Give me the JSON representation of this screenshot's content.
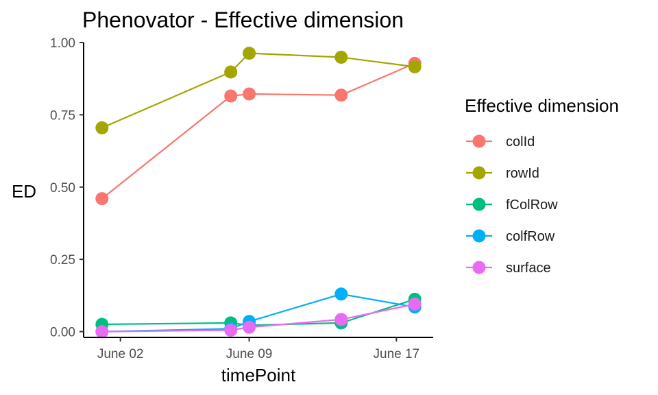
{
  "chart_data": {
    "type": "line",
    "title": "Phenovator - Effective dimension",
    "xlabel": "timePoint",
    "ylabel": "ED",
    "legend_title": "Effective dimension",
    "legend_position": "right",
    "grid": false,
    "x_type": "date",
    "xlim": [
      "2018-05-31",
      "2018-06-19"
    ],
    "ylim": [
      -0.02,
      1.0
    ],
    "x_ticks": [
      {
        "value": "2018-06-02",
        "label": "June 02"
      },
      {
        "value": "2018-06-09",
        "label": "June 09"
      },
      {
        "value": "2018-06-17",
        "label": "June 17"
      }
    ],
    "y_ticks": [
      {
        "value": 0.0,
        "label": "0.00"
      },
      {
        "value": 0.25,
        "label": "0.25"
      },
      {
        "value": 0.5,
        "label": "0.50"
      },
      {
        "value": 0.75,
        "label": "0.75"
      },
      {
        "value": 1.0,
        "label": "1.00"
      }
    ],
    "x": [
      "2018-06-01",
      "2018-06-08",
      "2018-06-09",
      "2018-06-14",
      "2018-06-18"
    ],
    "series": [
      {
        "name": "colId",
        "color": "#F8766D",
        "values": [
          0.46,
          0.815,
          0.822,
          0.818,
          0.928
        ]
      },
      {
        "name": "rowId",
        "color": "#A3A500",
        "values": [
          0.705,
          0.898,
          0.963,
          0.949,
          0.916
        ]
      },
      {
        "name": "fColRow",
        "color": "#00BF7D",
        "values": [
          0.025,
          0.03,
          0.022,
          0.03,
          0.112
        ]
      },
      {
        "name": "colfRow",
        "color": "#00B0F6",
        "values": [
          0.0,
          0.01,
          0.035,
          0.13,
          0.085
        ]
      },
      {
        "name": "surface",
        "color": "#E76BF3",
        "values": [
          0.0,
          0.005,
          0.015,
          0.042,
          0.095
        ]
      }
    ]
  }
}
